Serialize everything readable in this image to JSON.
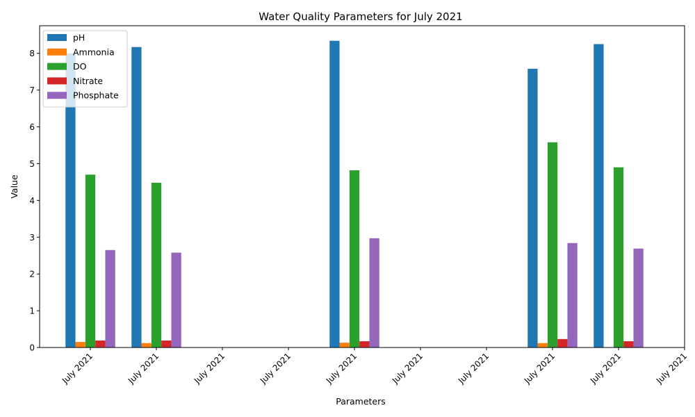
{
  "chart_data": {
    "type": "bar",
    "title": "Water Quality Parameters for July 2021",
    "xlabel": "Parameters",
    "ylabel": "Value",
    "ylim": [
      0,
      8.75
    ],
    "yticks": [
      0,
      1,
      2,
      3,
      4,
      5,
      6,
      7,
      8
    ],
    "grid": false,
    "legend_position": "top-left",
    "categories": [
      "July 2021",
      "July 2021",
      "July 2021",
      "July 2021",
      "July 2021",
      "July 2021",
      "July 2021",
      "July 2021",
      "July 2021",
      "July 2021"
    ],
    "series": [
      {
        "name": "pH",
        "color": "#1f77b4",
        "values": [
          8.0,
          8.17,
          null,
          null,
          8.34,
          null,
          null,
          7.58,
          8.25,
          null
        ]
      },
      {
        "name": "Ammonia",
        "color": "#ff7f0e",
        "values": [
          0.15,
          0.12,
          null,
          null,
          0.13,
          null,
          null,
          0.12,
          null,
          null
        ]
      },
      {
        "name": "DO",
        "color": "#2ca02c",
        "values": [
          4.7,
          4.48,
          null,
          null,
          4.82,
          null,
          null,
          5.58,
          4.9,
          null
        ]
      },
      {
        "name": "Nitrate",
        "color": "#d62728",
        "values": [
          0.19,
          0.19,
          null,
          null,
          0.17,
          null,
          null,
          0.23,
          0.17,
          null
        ]
      },
      {
        "name": "Phosphate",
        "color": "#9467bd",
        "values": [
          2.65,
          2.58,
          null,
          null,
          2.97,
          null,
          null,
          2.84,
          2.69,
          null
        ]
      }
    ]
  }
}
